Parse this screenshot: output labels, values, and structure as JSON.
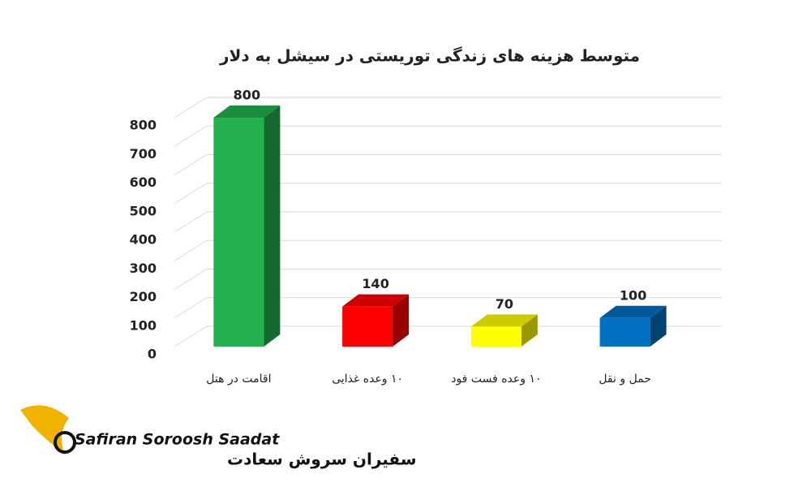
{
  "chart_data": {
    "type": "bar3d",
    "title": "متوسط هزینه های زندگی توریستی در سیشل به دلار",
    "categories": [
      "اقامت در هتل",
      "۱۰ وعده غذایی",
      "۱۰ وعده فست فود",
      "حمل و نقل"
    ],
    "values": [
      800,
      140,
      70,
      100
    ],
    "colors": [
      "#22b14c",
      "#ff0000",
      "#ffff00",
      "#0070c0"
    ],
    "ylim": [
      0,
      800
    ],
    "yticks": [
      0,
      100,
      200,
      300,
      400,
      500,
      600,
      700,
      800
    ],
    "grid": true
  },
  "logo": {
    "latin": "Safiran Soroosh Saadat",
    "persian": "سفیران سروش سعادت"
  }
}
